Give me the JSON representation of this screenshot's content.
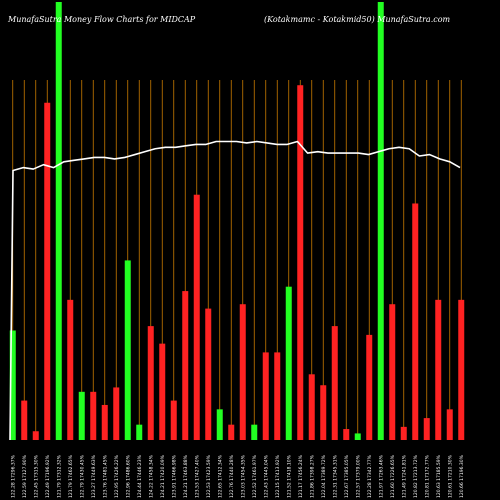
{
  "chart_data": {
    "type": "bar",
    "title": "MunafaSutra  Money Flow  Charts for MIDCAP",
    "subtitle": "(Kotakmamc -  Kotakmid50) MunafaSutra.com",
    "colors": {
      "background": "#000000",
      "up": "#22ff22",
      "down": "#ff2222",
      "grid": "#c87a00",
      "line": "#ffffff"
    },
    "grid": "vertical",
    "ylim": [
      0,
      100
    ],
    "bars": [
      {
        "dir": "up",
        "value": 25
      },
      {
        "dir": "down",
        "value": 9
      },
      {
        "dir": "down",
        "value": 2
      },
      {
        "dir": "down",
        "value": 77
      },
      {
        "dir": "up",
        "value": 100
      },
      {
        "dir": "down",
        "value": 32
      },
      {
        "dir": "up",
        "value": 11
      },
      {
        "dir": "down",
        "value": 11
      },
      {
        "dir": "down",
        "value": 8
      },
      {
        "dir": "down",
        "value": 12
      },
      {
        "dir": "up",
        "value": 41
      },
      {
        "dir": "up",
        "value": 3.5
      },
      {
        "dir": "down",
        "value": 26
      },
      {
        "dir": "down",
        "value": 22
      },
      {
        "dir": "down",
        "value": 9
      },
      {
        "dir": "down",
        "value": 34
      },
      {
        "dir": "down",
        "value": 56
      },
      {
        "dir": "down",
        "value": 30
      },
      {
        "dir": "up",
        "value": 7
      },
      {
        "dir": "down",
        "value": 3.5
      },
      {
        "dir": "down",
        "value": 31
      },
      {
        "dir": "up",
        "value": 3.5
      },
      {
        "dir": "down",
        "value": 20
      },
      {
        "dir": "down",
        "value": 20
      },
      {
        "dir": "up",
        "value": 35
      },
      {
        "dir": "down",
        "value": 81
      },
      {
        "dir": "down",
        "value": 15
      },
      {
        "dir": "down",
        "value": 12.5
      },
      {
        "dir": "down",
        "value": 26
      },
      {
        "dir": "down",
        "value": 2.5
      },
      {
        "dir": "up",
        "value": 1.5
      },
      {
        "dir": "down",
        "value": 24
      },
      {
        "dir": "up",
        "value": 100
      },
      {
        "dir": "down",
        "value": 31
      },
      {
        "dir": "down",
        "value": 3
      },
      {
        "dir": "down",
        "value": 54
      },
      {
        "dir": "down",
        "value": 5
      },
      {
        "dir": "down",
        "value": 32
      },
      {
        "dir": "down",
        "value": 7
      },
      {
        "dir": "down",
        "value": 32
      }
    ],
    "line": [
      55,
      56,
      55.5,
      57,
      56,
      58,
      58.5,
      59,
      59.5,
      59.5,
      59,
      59.5,
      60.5,
      61.5,
      62.5,
      63,
      63,
      63.5,
      64,
      64,
      65,
      65,
      65,
      64.5,
      65,
      64.5,
      64,
      64,
      65,
      61,
      61.5,
      61,
      61,
      61,
      61,
      60.5,
      61.5,
      62.5,
      63,
      62.5,
      60,
      60.5,
      59,
      58,
      56
    ],
    "tick_labels": [
      "122.28 17296.37%",
      "122.59 17127.90%",
      "122.45 17315.30%",
      "122.49 17196.92%",
      "121.79 17312.32%",
      "121.79 17462.65%",
      "122.79 17430.45%",
      "123.27 17449.63%",
      "123.76 17481.45%",
      "122.95 17426.22%",
      "122.96 17486.60%",
      "124.44 17446.23%",
      "124.22 17458.34%",
      "124.21 17420.09%",
      "123.91 17466.98%",
      "124.21 17463.88%",
      "123.53 17427.40%",
      "122.53 17423.59%",
      "122.65 17412.34%",
      "122.76 17440.28%",
      "123.03 17454.35%",
      "122.52 17461.97%",
      "122.43 17445.04%",
      "122.15 17413.92%",
      "121.52 17418.10%",
      "121.17 17456.24%",
      "121.86 17398.27%",
      "122.04 17389.72%",
      "122.31 17345.31%",
      "122.67 17385.05%",
      "122.57 17379.00%",
      "122.28 17342.77%",
      "121.97 17263.46%",
      "121.60 17226.65%",
      "121.49 17241.81%",
      "120.82 17213.72%",
      "120.81 17172.77%",
      "120.63 17185.59%",
      "120.61 17210.30%",
      "120.66 17196.30%"
    ]
  }
}
